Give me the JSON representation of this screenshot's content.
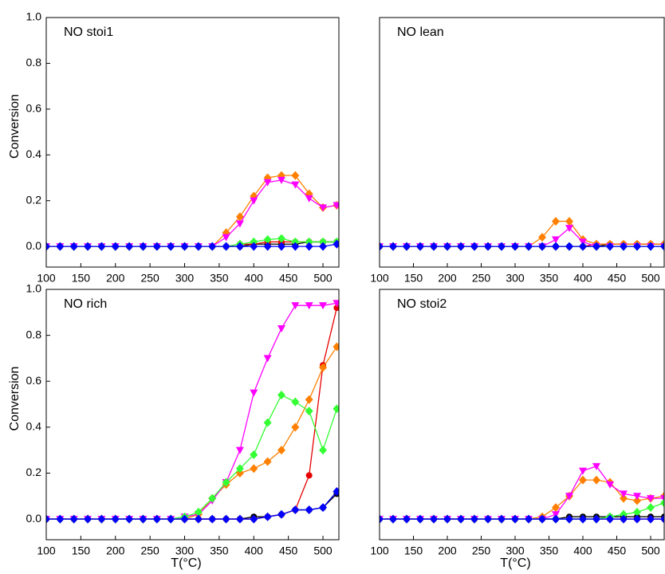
{
  "chart_data": [
    {
      "type": "line",
      "title": "NO stoi1",
      "ylabel": "Conversion",
      "x": [
        100,
        120,
        140,
        160,
        180,
        200,
        220,
        240,
        260,
        280,
        300,
        320,
        340,
        360,
        380,
        400,
        420,
        440,
        460,
        480,
        500,
        520
      ],
      "xlim": [
        100,
        523
      ],
      "xticks": [
        100,
        150,
        200,
        250,
        300,
        350,
        400,
        450,
        500
      ],
      "ylim": [
        -0.09,
        1.0
      ],
      "yticks": [
        {
          "value": 0,
          "label": "0.0"
        },
        0.2,
        0.4,
        0.6,
        0.8,
        {
          "value": 1,
          "label": "1.0"
        }
      ],
      "series": [
        {
          "color": "#000000",
          "marker": "circle",
          "values": [
            0,
            0,
            0,
            0,
            0,
            0,
            0,
            0,
            0,
            0,
            0,
            0,
            0,
            0,
            0,
            0.01,
            0.01,
            0.01,
            0.01,
            0.02,
            0.02,
            0.02
          ]
        },
        {
          "color": "#e60000",
          "marker": "circle",
          "values": [
            0,
            0,
            0,
            0,
            0,
            0,
            0,
            0,
            0,
            0,
            0,
            0,
            0,
            0,
            0.01,
            0.01,
            0.02,
            0.02,
            0.02,
            0.02,
            0.02,
            0.02
          ]
        },
        {
          "color": "#ff8000",
          "marker": "diamond",
          "values": [
            0,
            0,
            0,
            0,
            0,
            0,
            0,
            0,
            0,
            0,
            0,
            0,
            0,
            0.06,
            0.13,
            0.22,
            0.3,
            0.31,
            0.31,
            0.23,
            0.17,
            0.18
          ]
        },
        {
          "color": "#ff00ff",
          "marker": "triangle",
          "values": [
            0,
            0,
            0,
            0,
            0,
            0,
            0,
            0,
            0,
            0,
            0,
            0,
            0,
            0.04,
            0.1,
            0.2,
            0.28,
            0.29,
            0.27,
            0.21,
            0.17,
            0.18
          ]
        },
        {
          "color": "#33ff33",
          "marker": "diamond",
          "values": [
            0,
            0,
            0,
            0,
            0,
            0,
            0,
            0,
            0,
            0,
            0,
            0,
            0,
            0,
            0.01,
            0.02,
            0.03,
            0.035,
            0.02,
            0.02,
            0.02,
            0.02
          ]
        },
        {
          "color": "#0000ff",
          "marker": "diamond",
          "values": [
            0,
            0,
            0,
            0,
            0,
            0,
            0,
            0,
            0,
            0,
            0,
            0,
            0,
            0,
            0,
            0,
            0,
            0,
            0,
            0,
            0,
            0.01
          ]
        }
      ]
    },
    {
      "type": "line",
      "title": "NO lean",
      "x": [
        100,
        120,
        140,
        160,
        180,
        200,
        220,
        240,
        260,
        280,
        300,
        320,
        340,
        360,
        380,
        400,
        420,
        440,
        460,
        480,
        500,
        520
      ],
      "xlim": [
        100,
        520
      ],
      "xticks": [
        100,
        150,
        200,
        250,
        300,
        350,
        400,
        450,
        500
      ],
      "ylim": [
        -0.09,
        1.0
      ],
      "series": [
        {
          "color": "#000000",
          "marker": "circle",
          "values": [
            0,
            0,
            0,
            0,
            0,
            0,
            0,
            0,
            0,
            0,
            0,
            0,
            0,
            0,
            0,
            0,
            0,
            0.01,
            0.01,
            0.01,
            0.01,
            0.01
          ]
        },
        {
          "color": "#e60000",
          "marker": "circle",
          "values": [
            0,
            0,
            0,
            0,
            0,
            0,
            0,
            0,
            0,
            0,
            0,
            0,
            0,
            0,
            0,
            0,
            0.01,
            0.01,
            0.01,
            0.01,
            0.01,
            0.01
          ]
        },
        {
          "color": "#ff8000",
          "marker": "diamond",
          "values": [
            0,
            0,
            0,
            0,
            0,
            0,
            0,
            0,
            0,
            0,
            0,
            0,
            0.04,
            0.11,
            0.11,
            0.03,
            0.01,
            0.01,
            0.01,
            0.01,
            0.01,
            0.01
          ]
        },
        {
          "color": "#ff00ff",
          "marker": "triangle",
          "values": [
            0,
            0,
            0,
            0,
            0,
            0,
            0,
            0,
            0,
            0,
            0,
            0,
            0,
            0.03,
            0.08,
            0.02,
            0,
            0,
            0,
            0,
            0,
            0
          ]
        },
        {
          "color": "#33ff33",
          "marker": "diamond",
          "values": [
            0,
            0,
            0,
            0,
            0,
            0,
            0,
            0,
            0,
            0,
            0,
            0,
            0,
            0,
            0,
            0,
            0,
            0,
            0,
            0,
            0,
            0
          ]
        },
        {
          "color": "#0000ff",
          "marker": "diamond",
          "values": [
            0,
            0,
            0,
            0,
            0,
            0,
            0,
            0,
            0,
            0,
            0,
            0,
            0,
            0,
            0,
            0,
            0,
            0,
            0,
            0,
            0,
            0
          ]
        }
      ]
    },
    {
      "type": "line",
      "title": "NO rich",
      "ylabel": "Conversion",
      "xlabel": "T(°C)",
      "x": [
        100,
        120,
        140,
        160,
        180,
        200,
        220,
        240,
        260,
        280,
        300,
        320,
        340,
        360,
        380,
        400,
        420,
        440,
        460,
        480,
        500,
        520
      ],
      "xlim": [
        100,
        523
      ],
      "xticks": [
        100,
        150,
        200,
        250,
        300,
        350,
        400,
        450,
        500
      ],
      "ylim": [
        -0.09,
        1.0
      ],
      "yticks": [
        {
          "value": 0,
          "label": "0.0"
        },
        0.2,
        0.4,
        0.6,
        0.8,
        {
          "value": 1,
          "label": "1.0"
        }
      ],
      "series": [
        {
          "color": "#000000",
          "marker": "circle",
          "values": [
            0,
            0,
            0,
            0,
            0,
            0,
            0,
            0,
            0,
            0,
            0,
            0,
            0,
            0,
            0,
            0.01,
            0.01,
            0.02,
            0.04,
            0.04,
            0.05,
            0.11
          ]
        },
        {
          "color": "#e60000",
          "marker": "circle",
          "values": [
            0,
            0,
            0,
            0,
            0,
            0,
            0,
            0,
            0,
            0,
            0,
            0,
            0,
            0,
            0,
            0,
            0.01,
            0.02,
            0.04,
            0.19,
            0.67,
            0.92
          ]
        },
        {
          "color": "#ff8000",
          "marker": "diamond",
          "values": [
            0,
            0,
            0,
            0,
            0,
            0,
            0,
            0,
            0,
            0,
            0,
            0.02,
            0.09,
            0.15,
            0.2,
            0.22,
            0.25,
            0.3,
            0.4,
            0.52,
            0.66,
            0.75
          ]
        },
        {
          "color": "#ff00ff",
          "marker": "triangle",
          "values": [
            0,
            0,
            0,
            0,
            0,
            0,
            0,
            0,
            0,
            0,
            0.01,
            0.02,
            0.08,
            0.16,
            0.3,
            0.55,
            0.7,
            0.83,
            0.93,
            0.93,
            0.93,
            0.94
          ]
        },
        {
          "color": "#33ff33",
          "marker": "diamond",
          "values": [
            0,
            0,
            0,
            0,
            0,
            0,
            0,
            0,
            0,
            0,
            0.01,
            0.03,
            0.09,
            0.16,
            0.22,
            0.28,
            0.42,
            0.54,
            0.51,
            0.47,
            0.3,
            0.48
          ]
        },
        {
          "color": "#0000ff",
          "marker": "diamond",
          "values": [
            0,
            0,
            0,
            0,
            0,
            0,
            0,
            0,
            0,
            0,
            0,
            0,
            0,
            0,
            0,
            0,
            0.01,
            0.02,
            0.04,
            0.04,
            0.05,
            0.12
          ]
        }
      ]
    },
    {
      "type": "line",
      "title": "NO stoi2",
      "xlabel": "T(°C)",
      "x": [
        100,
        120,
        140,
        160,
        180,
        200,
        220,
        240,
        260,
        280,
        300,
        320,
        340,
        360,
        380,
        400,
        420,
        440,
        460,
        480,
        500,
        520
      ],
      "xlim": [
        100,
        520
      ],
      "xticks": [
        100,
        150,
        200,
        250,
        300,
        350,
        400,
        450,
        500
      ],
      "ylim": [
        -0.09,
        1.0
      ],
      "series": [
        {
          "color": "#000000",
          "marker": "circle",
          "values": [
            0,
            0,
            0,
            0,
            0,
            0,
            0,
            0,
            0,
            0,
            0,
            0,
            0,
            0,
            0.01,
            0.01,
            0.01,
            0.01,
            0.01,
            0.01,
            0.01,
            0.01
          ]
        },
        {
          "color": "#e60000",
          "marker": "circle",
          "values": [
            0,
            0,
            0,
            0,
            0,
            0,
            0,
            0,
            0,
            0,
            0,
            0,
            0,
            0,
            0,
            0,
            0,
            0,
            0,
            0,
            0,
            0
          ]
        },
        {
          "color": "#ff8000",
          "marker": "diamond",
          "values": [
            0,
            0,
            0,
            0,
            0,
            0,
            0,
            0,
            0,
            0,
            0,
            0,
            0.01,
            0.05,
            0.1,
            0.17,
            0.17,
            0.16,
            0.09,
            0.08,
            0.09,
            0.1
          ]
        },
        {
          "color": "#ff00ff",
          "marker": "triangle",
          "values": [
            0,
            0,
            0,
            0,
            0,
            0,
            0,
            0,
            0,
            0,
            0,
            0,
            0,
            0.02,
            0.1,
            0.21,
            0.23,
            0.15,
            0.11,
            0.1,
            0.09,
            0.09
          ]
        },
        {
          "color": "#33ff33",
          "marker": "diamond",
          "values": [
            0,
            0,
            0,
            0,
            0,
            0,
            0,
            0,
            0,
            0,
            0,
            0,
            0,
            0,
            0,
            0,
            0,
            0.01,
            0.02,
            0.03,
            0.05,
            0.07
          ]
        },
        {
          "color": "#0000ff",
          "marker": "diamond",
          "values": [
            0,
            0,
            0,
            0,
            0,
            0,
            0,
            0,
            0,
            0,
            0,
            0,
            0,
            0,
            0,
            0,
            0,
            0,
            0,
            0,
            0,
            0
          ]
        }
      ]
    }
  ]
}
